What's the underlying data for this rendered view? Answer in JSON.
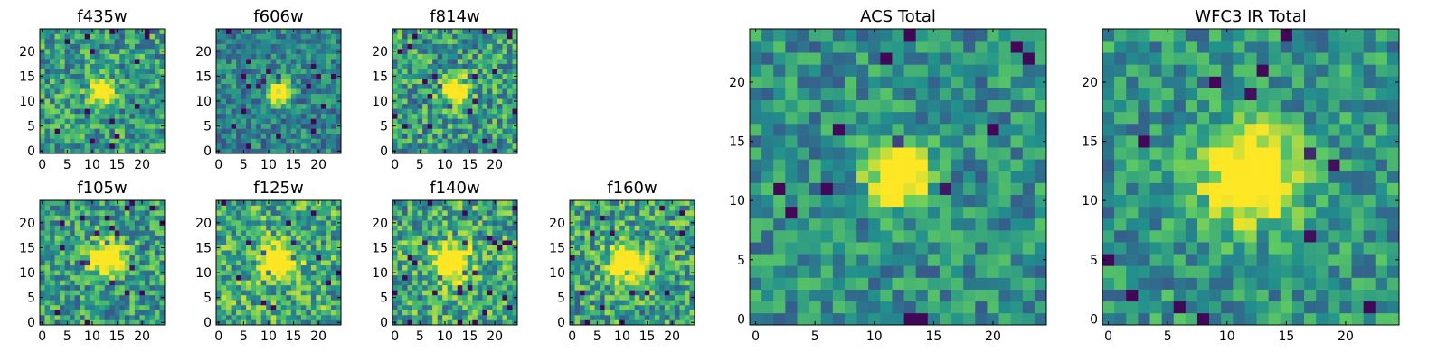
{
  "figure": {
    "colormap": [
      "#440154",
      "#3b528b",
      "#21908d",
      "#5dc963",
      "#fde725"
    ]
  },
  "chart_data": [
    {
      "type": "heatmap",
      "title": "f435w",
      "grid_size": 25,
      "source_center": [
        12,
        12
      ],
      "source_radius": 1.6,
      "noise_seed": 11,
      "background": 0.55,
      "noise_amp": 0.28,
      "xticks": [
        0,
        5,
        10,
        15,
        20
      ],
      "yticks": [
        0,
        5,
        10,
        15,
        20
      ],
      "xlim": [
        0,
        24
      ],
      "ylim": [
        0,
        24
      ],
      "colorscale": "viridis"
    },
    {
      "type": "heatmap",
      "title": "f606w",
      "grid_size": 25,
      "source_center": [
        12,
        12
      ],
      "source_radius": 1.6,
      "noise_seed": 23,
      "background": 0.45,
      "noise_amp": 0.22,
      "xticks": [
        0,
        5,
        10,
        15,
        20
      ],
      "yticks": [
        0,
        5,
        10,
        15,
        20
      ],
      "xlim": [
        0,
        24
      ],
      "ylim": [
        0,
        24
      ],
      "colorscale": "viridis"
    },
    {
      "type": "heatmap",
      "title": "f814w",
      "grid_size": 25,
      "source_center": [
        12,
        12
      ],
      "source_radius": 1.8,
      "noise_seed": 37,
      "background": 0.55,
      "noise_amp": 0.3,
      "xticks": [
        0,
        5,
        10,
        15,
        20
      ],
      "yticks": [
        0,
        5,
        10,
        15,
        20
      ],
      "xlim": [
        0,
        24
      ],
      "ylim": [
        0,
        24
      ],
      "colorscale": "viridis"
    },
    {
      "type": "heatmap",
      "title": "f105w",
      "grid_size": 25,
      "source_center": [
        13,
        13
      ],
      "source_radius": 2.2,
      "noise_seed": 41,
      "background": 0.55,
      "noise_amp": 0.28,
      "xticks": [
        0,
        5,
        10,
        15,
        20
      ],
      "yticks": [
        0,
        5,
        10,
        15,
        20
      ],
      "xlim": [
        0,
        24
      ],
      "ylim": [
        0,
        24
      ],
      "colorscale": "viridis"
    },
    {
      "type": "heatmap",
      "title": "f125w",
      "grid_size": 25,
      "source_center": [
        12,
        12
      ],
      "source_radius": 2.2,
      "noise_seed": 53,
      "background": 0.62,
      "noise_amp": 0.3,
      "xticks": [
        0,
        5,
        10,
        15,
        20
      ],
      "yticks": [
        0,
        5,
        10,
        15,
        20
      ],
      "xlim": [
        0,
        24
      ],
      "ylim": [
        0,
        24
      ],
      "colorscale": "viridis"
    },
    {
      "type": "heatmap",
      "title": "f140w",
      "grid_size": 25,
      "source_center": [
        11,
        12
      ],
      "source_radius": 2.4,
      "noise_seed": 67,
      "background": 0.6,
      "noise_amp": 0.3,
      "xticks": [
        0,
        5,
        10,
        15,
        20
      ],
      "yticks": [
        0,
        5,
        10,
        15,
        20
      ],
      "xlim": [
        0,
        24
      ],
      "ylim": [
        0,
        24
      ],
      "colorscale": "viridis"
    },
    {
      "type": "heatmap",
      "title": "f160w",
      "grid_size": 25,
      "source_center": [
        11,
        12
      ],
      "source_radius": 2.4,
      "noise_seed": 79,
      "background": 0.58,
      "noise_amp": 0.3,
      "xticks": [
        0,
        5,
        10,
        15,
        20
      ],
      "yticks": [
        0,
        5,
        10,
        15,
        20
      ],
      "xlim": [
        0,
        24
      ],
      "ylim": [
        0,
        24
      ],
      "colorscale": "viridis"
    },
    {
      "type": "heatmap",
      "title": "ACS Total",
      "grid_size": 25,
      "source_center": [
        12,
        12
      ],
      "source_radius": 1.7,
      "noise_seed": 97,
      "background": 0.5,
      "noise_amp": 0.22,
      "xticks": [
        0,
        5,
        10,
        15,
        20
      ],
      "yticks": [
        0,
        5,
        10,
        15,
        20
      ],
      "xlim": [
        0,
        24
      ],
      "ylim": [
        0,
        24
      ],
      "colorscale": "viridis"
    },
    {
      "type": "heatmap",
      "title": "WFC3 IR Total",
      "grid_size": 25,
      "source_center": [
        12,
        12
      ],
      "source_radius": 2.6,
      "noise_seed": 113,
      "background": 0.52,
      "noise_amp": 0.22,
      "xticks": [
        0,
        5,
        10,
        15,
        20
      ],
      "yticks": [
        0,
        5,
        10,
        15,
        20
      ],
      "xlim": [
        0,
        24
      ],
      "ylim": [
        0,
        24
      ],
      "colorscale": "viridis"
    }
  ]
}
